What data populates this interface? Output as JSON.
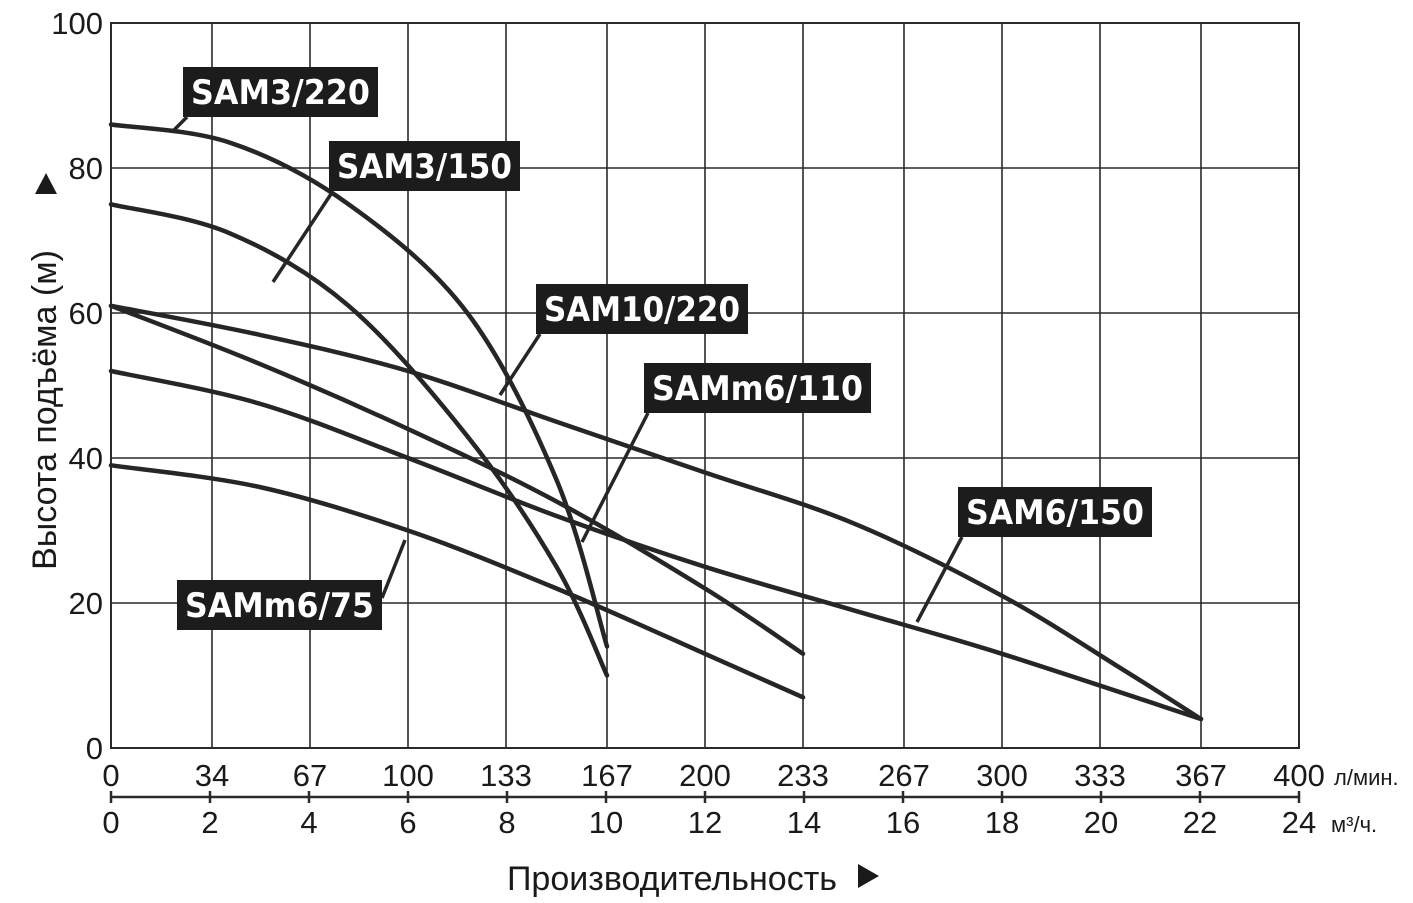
{
  "chart_data": {
    "type": "line",
    "ylabel": "Высота подъёма (м)",
    "xlabel": "Производительность",
    "ylim": [
      0,
      100
    ],
    "xlim": [
      0,
      400
    ],
    "grid": true,
    "y_ticks": [
      "0",
      "20",
      "40",
      "60",
      "80",
      "100"
    ],
    "y_tick_values": [
      0,
      20,
      40,
      60,
      80,
      100
    ],
    "x_ticks_primary": [
      "0",
      "34",
      "67",
      "100",
      "133",
      "167",
      "200",
      "233",
      "267",
      "300",
      "333",
      "367",
      "400"
    ],
    "x_ticks_primary_values": [
      0,
      34,
      67,
      100,
      133,
      167,
      200,
      233,
      267,
      300,
      333,
      367,
      400
    ],
    "x_unit_primary": "л/мин.",
    "x_ticks_secondary": [
      "0",
      "2",
      "4",
      "6",
      "8",
      "10",
      "12",
      "14",
      "16",
      "18",
      "20",
      "22",
      "24"
    ],
    "x_unit_secondary": "м³/ч.",
    "series": [
      {
        "name": "SAM3/220",
        "x": [
          0,
          40,
          80,
          120,
          150,
          167
        ],
        "y": [
          86,
          83.5,
          75,
          60,
          37,
          14
        ]
      },
      {
        "name": "SAM3/150",
        "x": [
          0,
          40,
          80,
          120,
          150,
          167
        ],
        "y": [
          75,
          71,
          61,
          43,
          25,
          10
        ]
      },
      {
        "name": "SAM10/220",
        "x": [
          0,
          50,
          100,
          150,
          200,
          250,
          300,
          340,
          367
        ],
        "y": [
          61,
          57,
          52,
          45,
          38,
          31,
          21,
          11,
          4
        ]
      },
      {
        "name": "SAMm6/110",
        "x": [
          0,
          50,
          100,
          150,
          200,
          233
        ],
        "y": [
          61,
          53,
          44,
          34,
          22,
          13
        ]
      },
      {
        "name": "SAM6/150",
        "x": [
          0,
          50,
          100,
          150,
          200,
          250,
          300,
          367
        ],
        "y": [
          52,
          47.5,
          40,
          32,
          25,
          19,
          13,
          4
        ]
      },
      {
        "name": "SAMm6/75",
        "x": [
          0,
          50,
          100,
          150,
          200,
          233
        ],
        "y": [
          39,
          36,
          30,
          22,
          13,
          7
        ]
      }
    ]
  }
}
